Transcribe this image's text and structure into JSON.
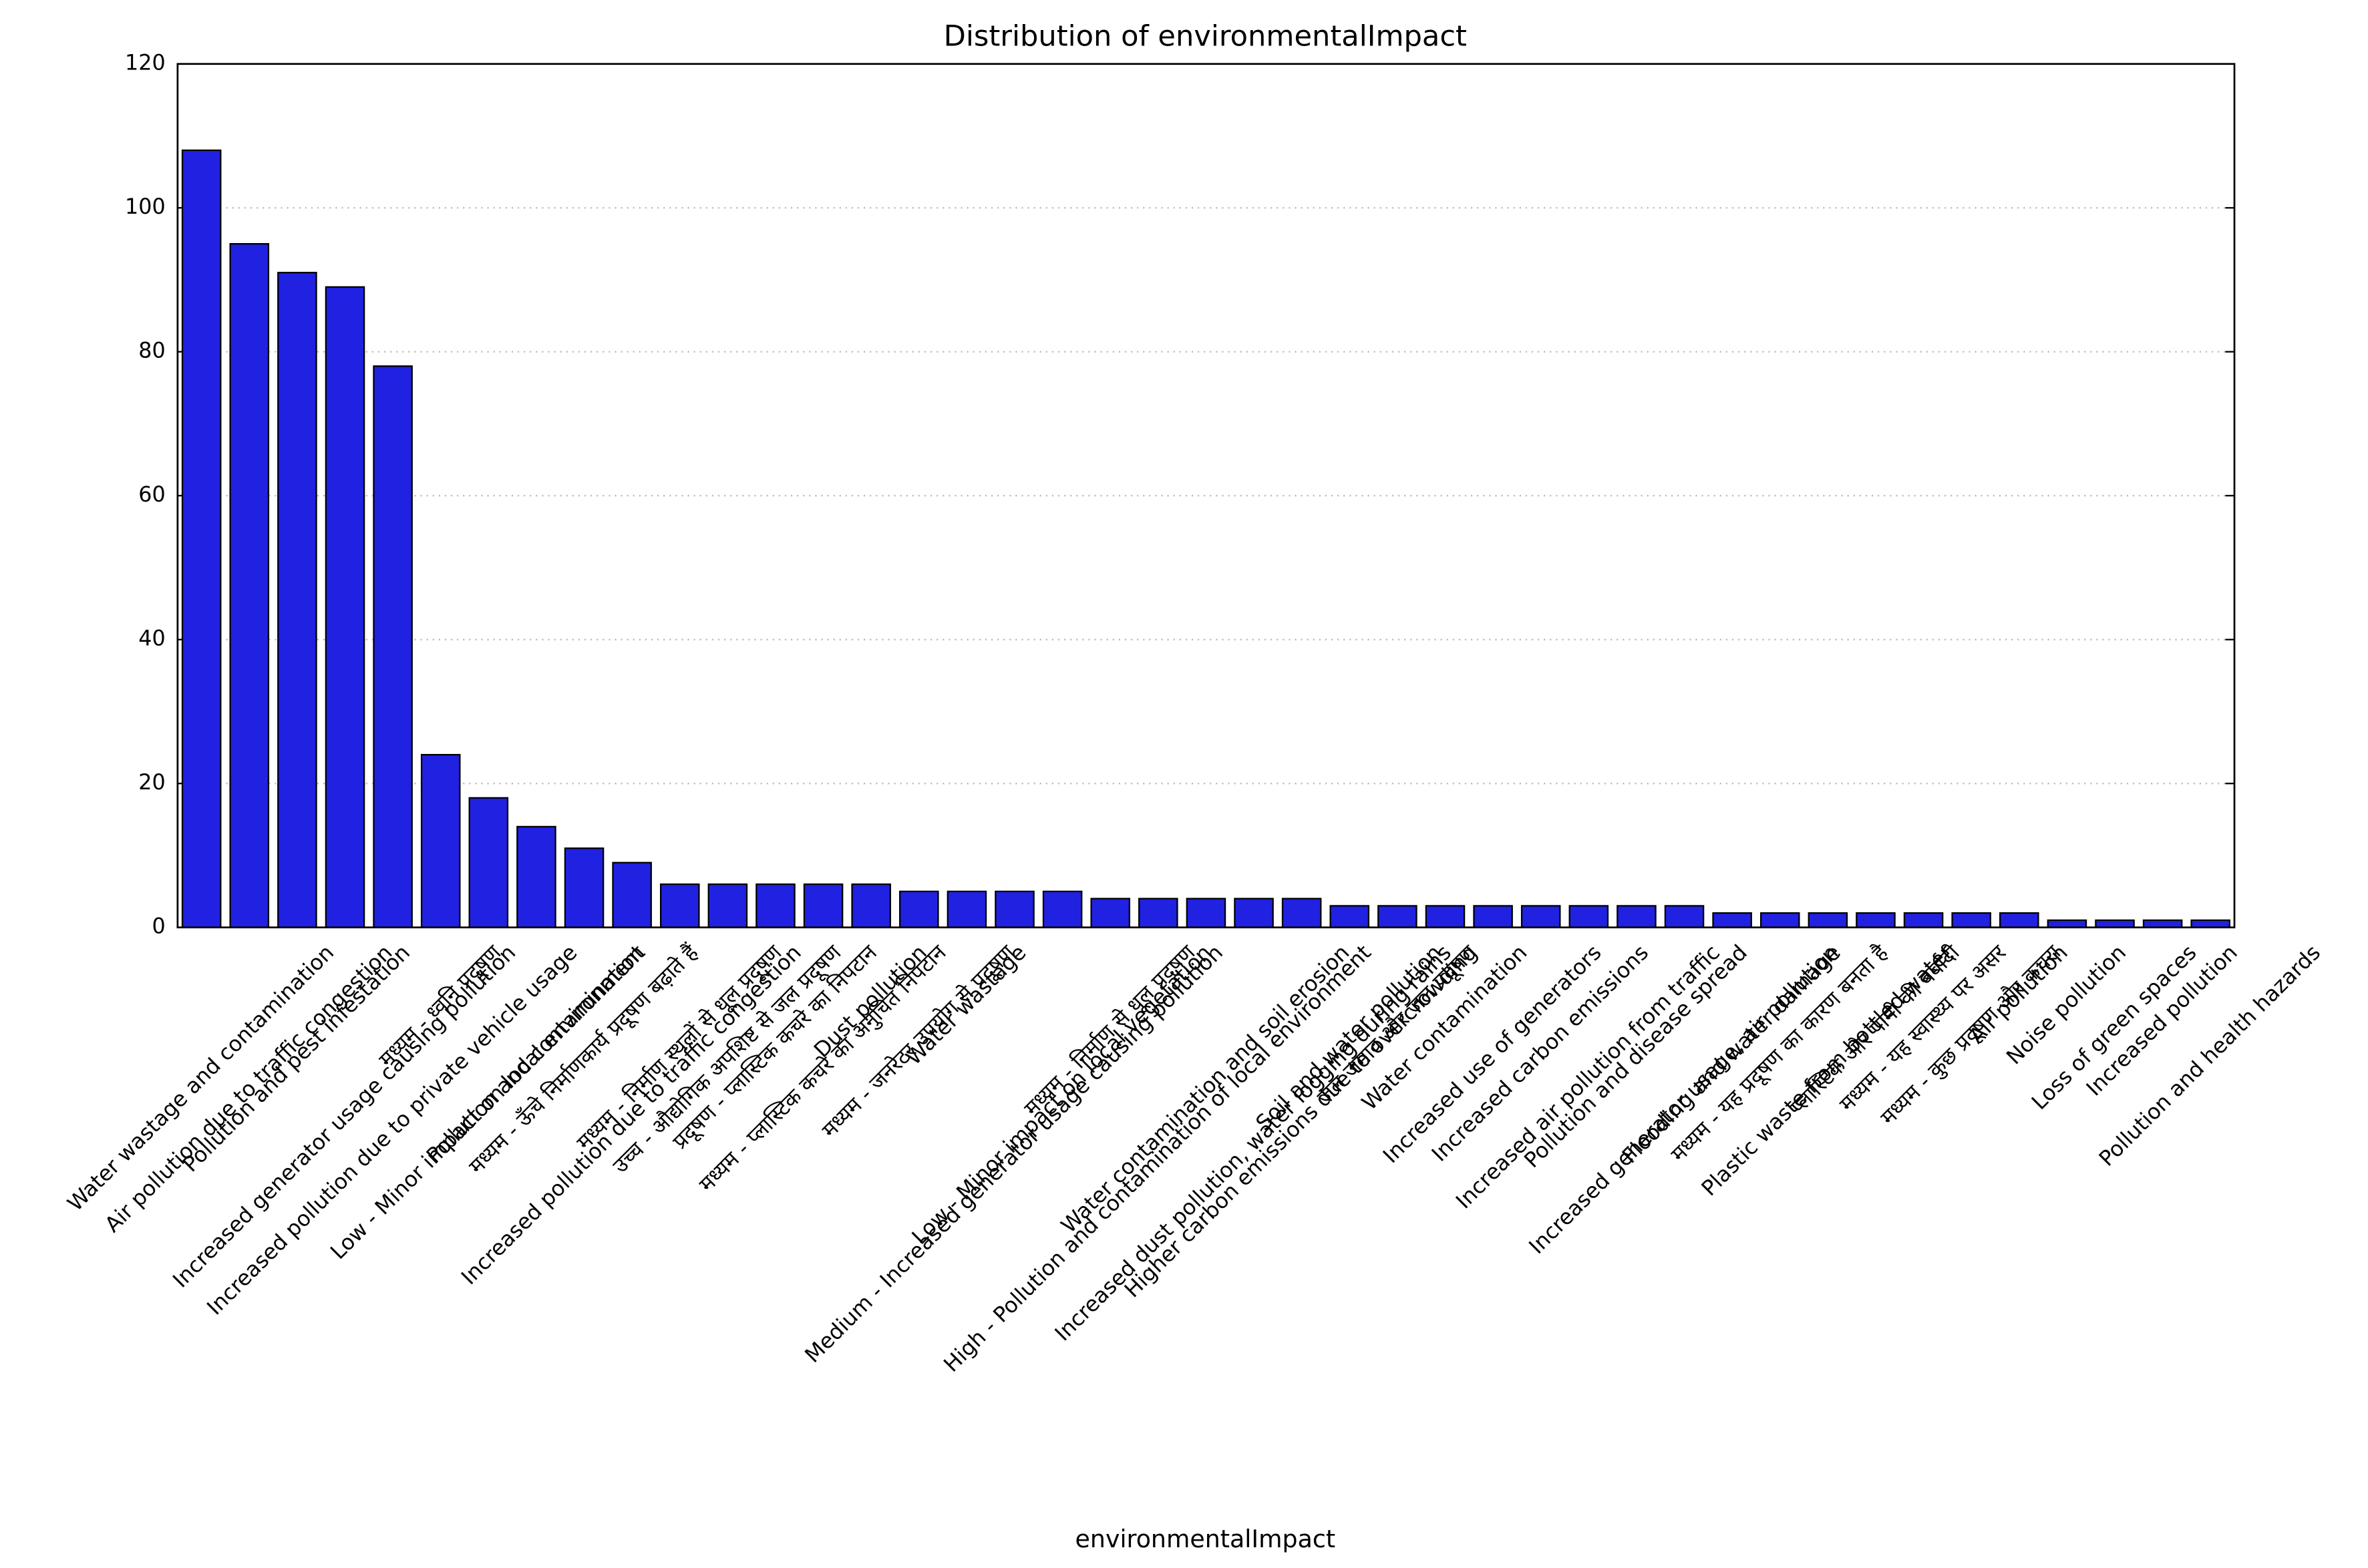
{
  "chart_data": {
    "type": "bar",
    "title": "Distribution of environmentalImpact",
    "x_label": "environmentalImpact",
    "categories": [
      "Water wastage and contamination",
      "Air pollution due to traffic congestion",
      "Pollution and pest infestation",
      "Increased generator usage causing pollution",
      "Increased pollution due to private vehicle usage",
      "मध्यम - ध्वनि प्रदूषण",
      "Low - Minor impact on local environment",
      "Pollution and contamination",
      "मध्यम - ऊँचे निर्माणकार्य प्रदूषण बढ़ाते हैं",
      "Increased pollution due to traffic congestion",
      "मध्यम - निर्माण स्थलों से धूल प्रदूषण",
      "उच्च - औद्योगिक अपशिष्ट से जल प्रदूषण",
      "प्रदूषण - प्लास्टिक कचरे का निपटान",
      "मध्यम - प्लास्टिक कचरे का अनुचित निपटान",
      "Dust pollution",
      "मध्यम - जनरेटर उपयोग से प्रदूषण",
      "Water wastage",
      "Medium - Increased generator usage causing pollution",
      "Low - Minor impact on local vegetation",
      "मध्यम - निर्माण से धूल प्रदूषण",
      "High - Pollution and contamination of local environment",
      "Water contamination and soil erosion",
      "Increased dust pollution, water logging during rains",
      "Higher carbon emissions due to overcrowding",
      "Soil and water pollution",
      "जल जमाव और जल प्रदूषण",
      "Water contamination",
      "Increased use of generators",
      "Increased carbon emissions",
      "Increased air pollution from traffic",
      "Pollution and disease spread",
      "Increased generator usage, air pollution",
      "Flooding and water damage",
      "मध्यम - यह प्रदूषण का कारण बनता है",
      "Plastic waste from bottled water",
      "प्लास्टिक और पानी की बर्बादी",
      "मध्यम - यह स्वास्थ्य पर असर",
      "मध्यम - कुछ प्रदूषण और कचरा",
      "Air pollution",
      "Noise pollution",
      "Loss of green spaces",
      "Increased pollution",
      "Pollution and health hazards"
    ],
    "values": [
      108,
      95,
      91,
      89,
      78,
      24,
      18,
      14,
      11,
      9,
      6,
      6,
      6,
      6,
      6,
      5,
      5,
      5,
      5,
      4,
      4,
      4,
      4,
      4,
      3,
      3,
      3,
      3,
      3,
      3,
      3,
      3,
      2,
      2,
      2,
      2,
      2,
      2,
      2,
      1,
      1,
      1,
      1
    ],
    "color": "#2121e2",
    "ylim": [
      0,
      120
    ],
    "yticks": [
      0,
      20,
      40,
      60,
      80,
      100,
      120
    ],
    "grid": true
  }
}
